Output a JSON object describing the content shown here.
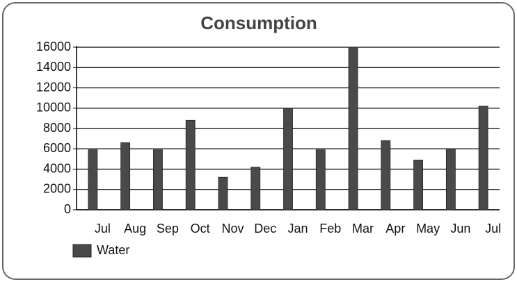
{
  "chart_data": {
    "type": "bar",
    "title": "Consumption",
    "categories": [
      "Jul",
      "Aug",
      "Sep",
      "Oct",
      "Nov",
      "Dec",
      "Jan",
      "Feb",
      "Mar",
      "Apr",
      "May",
      "Jun",
      "Jul"
    ],
    "series": [
      {
        "name": "Water",
        "color": "#4a4a4a",
        "values": [
          5900,
          6600,
          5900,
          8800,
          3200,
          4200,
          10000,
          5900,
          16000,
          6800,
          4900,
          6000,
          10200
        ]
      }
    ],
    "ylim": [
      0,
      16000
    ],
    "yticks": [
      0,
      2000,
      4000,
      6000,
      8000,
      10000,
      12000,
      14000,
      16000
    ],
    "grid": true,
    "legend": "bottom-left"
  }
}
